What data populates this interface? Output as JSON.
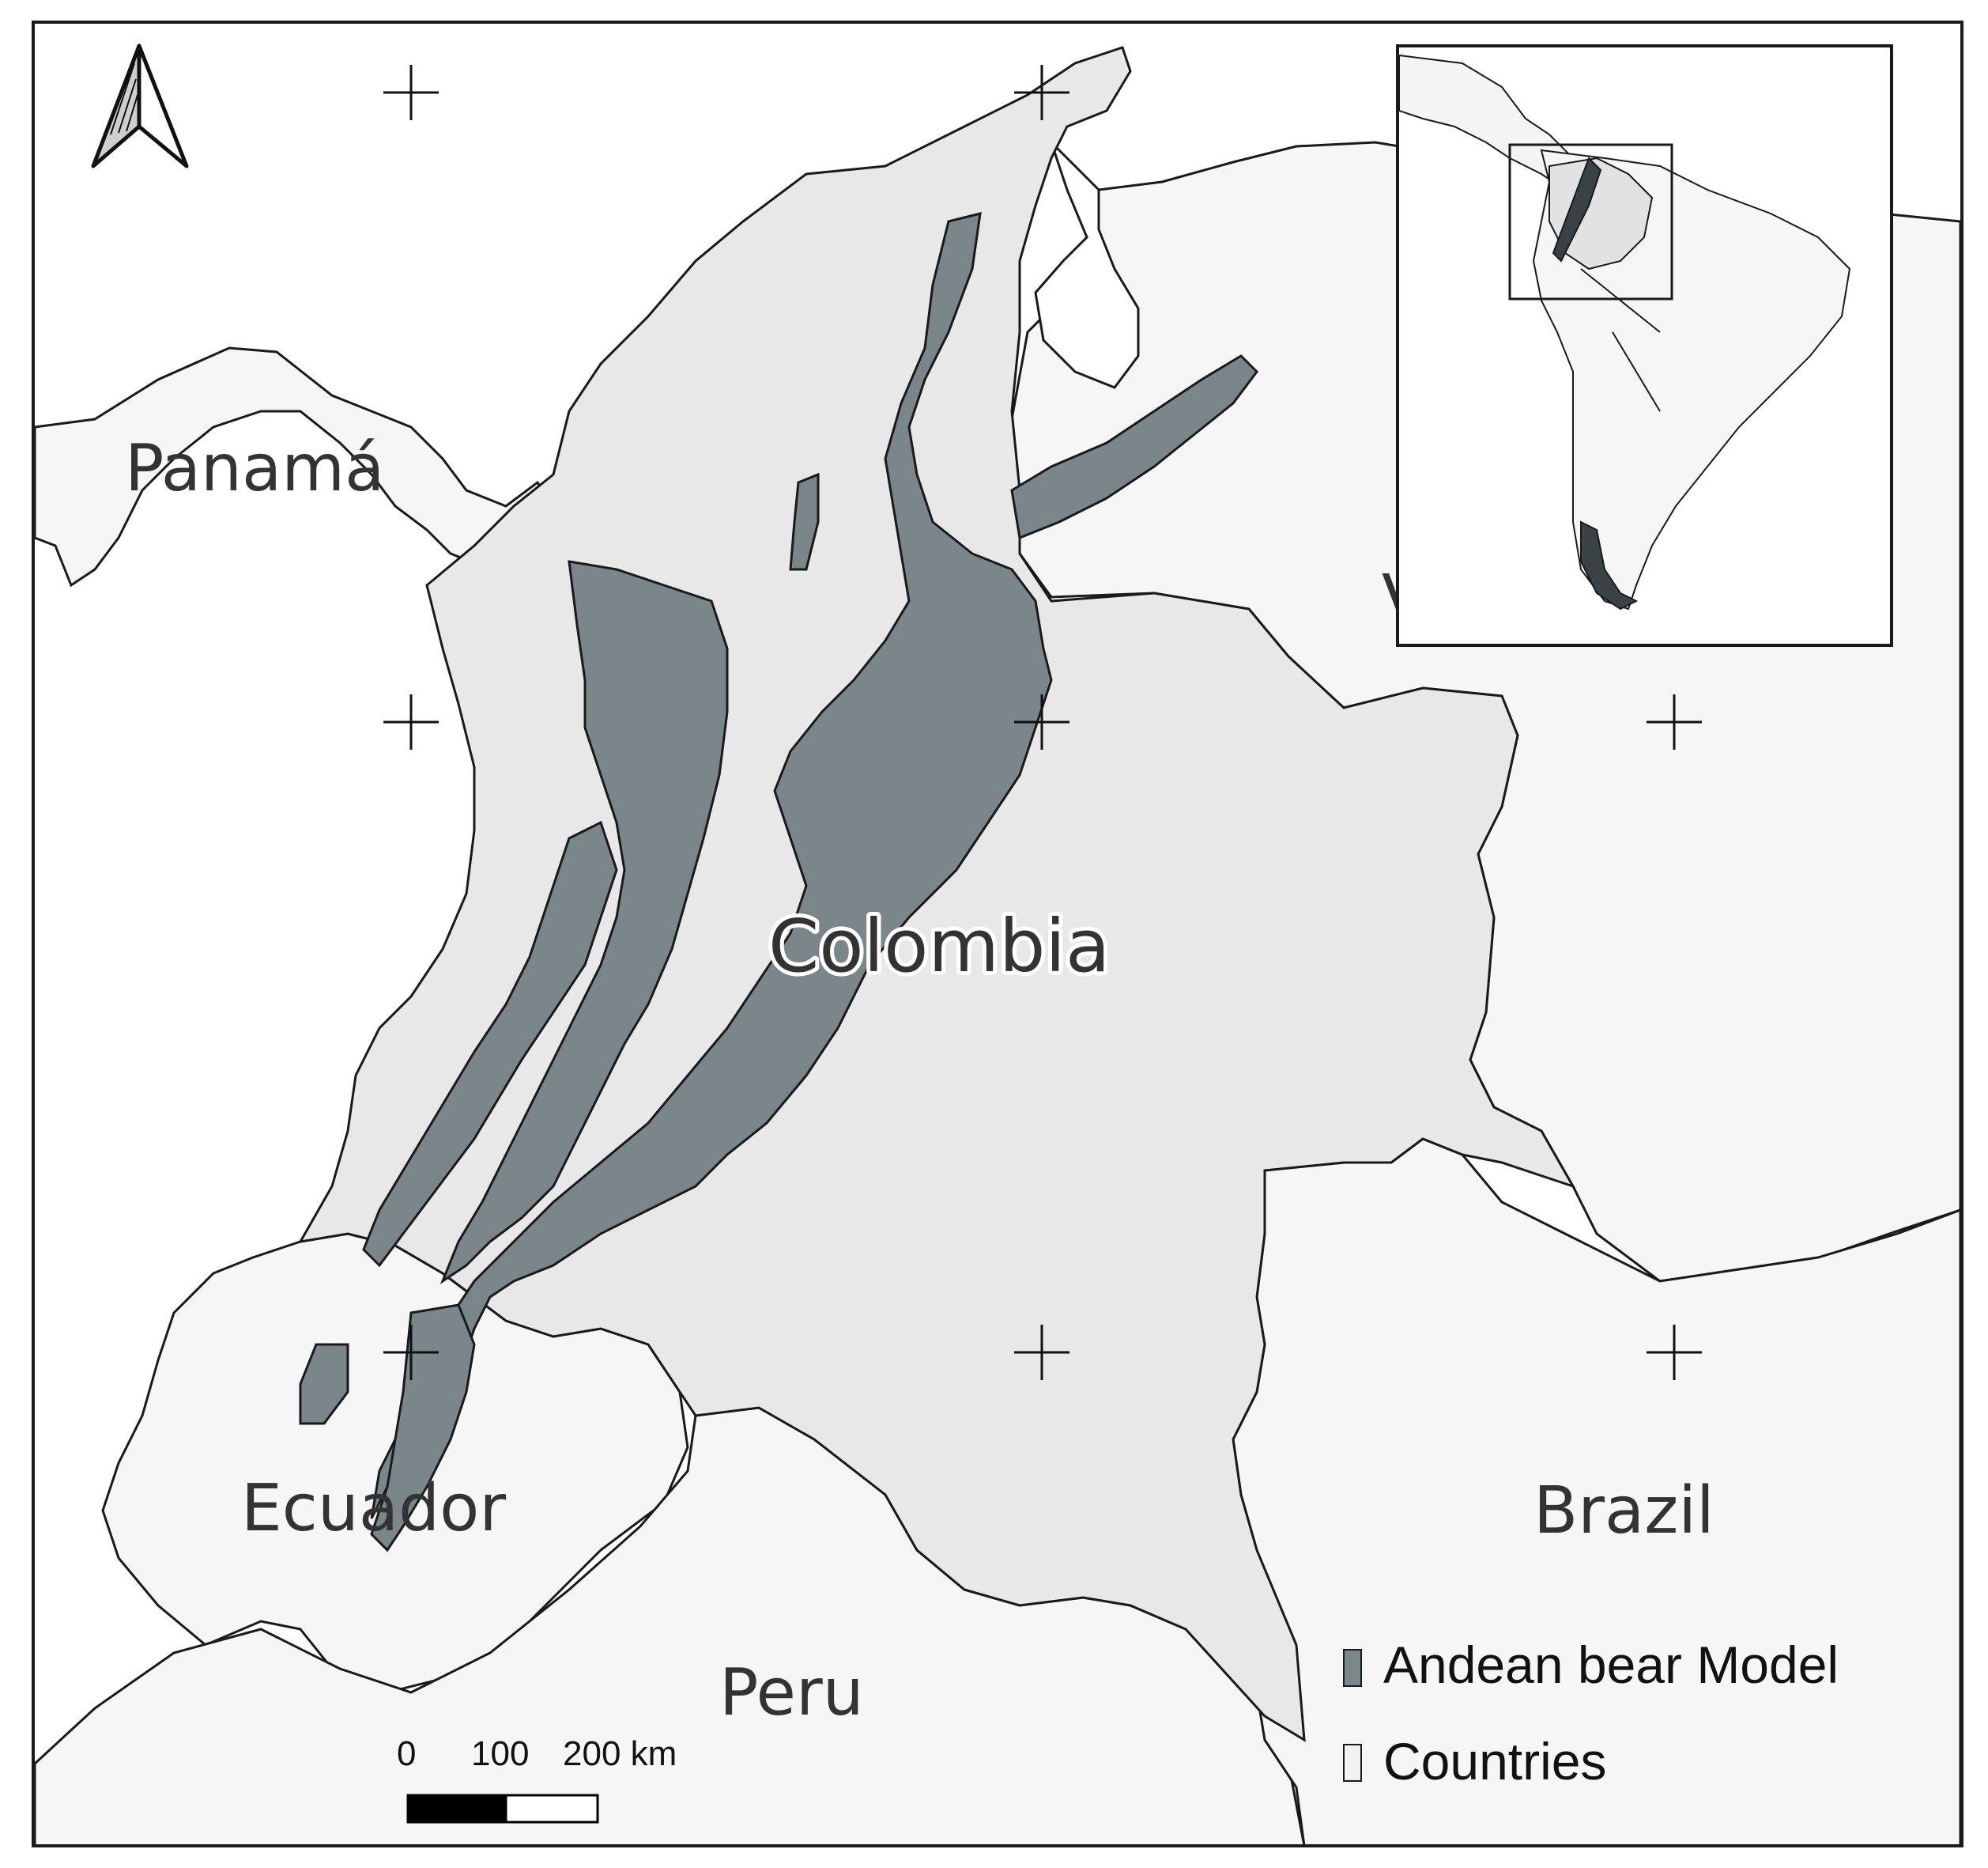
{
  "map": {
    "labels": {
      "panama": "Panamá",
      "colombia": "Colombia",
      "ecuador": "Ecuador",
      "peru": "Peru",
      "brazil": "Brazil",
      "venezuela_partial": "V"
    },
    "legend": {
      "items": [
        {
          "label": "Andean bear Model",
          "color": "#7b868b"
        },
        {
          "label": "Countries",
          "color": "#f2f2f2"
        }
      ]
    },
    "scalebar": {
      "tick_0": "0",
      "tick_100": "100",
      "tick_200": "200 km"
    },
    "colors": {
      "colombia_fill": "#e8e8e8",
      "country_fill": "#f6f6f6",
      "ocean": "#ffffff",
      "bear_model": "#7b868b",
      "outline": "#1a1a1a"
    },
    "north_arrow_icon": "north-arrow-icon"
  }
}
